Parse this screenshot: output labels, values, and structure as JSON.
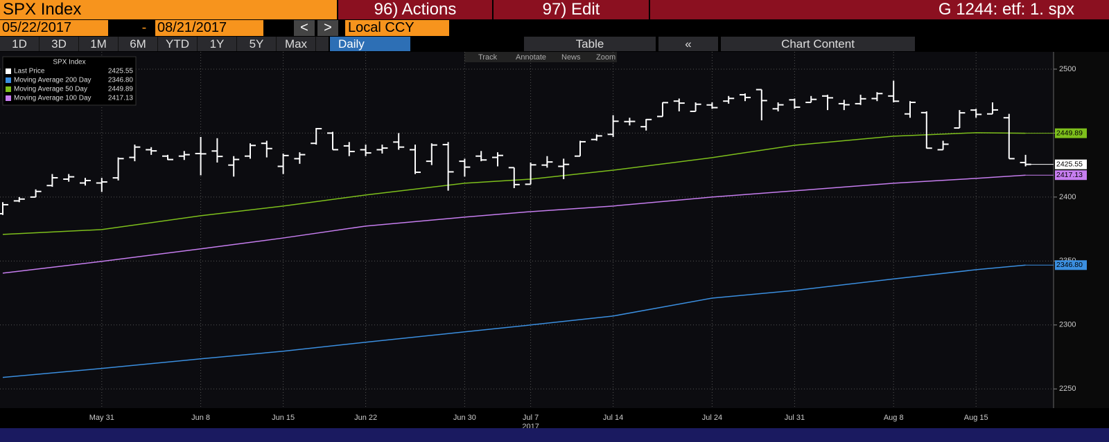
{
  "toolbar": {
    "security": "SPX Index",
    "actions": "96) Actions",
    "edit": "97) Edit",
    "ticker": "G 1244: etf: 1. spx"
  },
  "range": {
    "start": "05/22/2017",
    "separator": "-",
    "end": "08/21/2017",
    "prev": "<",
    "next": ">",
    "currency": "Local CCY"
  },
  "periods": [
    "1D",
    "3D",
    "1M",
    "6M",
    "YTD",
    "1Y",
    "5Y",
    "Max"
  ],
  "frequency": "Daily",
  "table": "Table",
  "collapse": "«",
  "chart_content": "Chart Content",
  "tools": [
    "Track",
    "Annotate",
    "News",
    "Zoom"
  ],
  "chart_data": {
    "type": "ohlc",
    "legend_title": "SPX Index",
    "price_name": "Last Price",
    "price_color": "#ffffff",
    "last_price": 2425.55,
    "last_price_label": "2425.55",
    "categories": [
      "May 22",
      "May 23",
      "May 24",
      "May 25",
      "May 26",
      "May 30",
      "May 31",
      "Jun 1",
      "Jun 2",
      "Jun 5",
      "Jun 6",
      "Jun 7",
      "Jun 8",
      "Jun 9",
      "Jun 12",
      "Jun 13",
      "Jun 14",
      "Jun 15",
      "Jun 16",
      "Jun 19",
      "Jun 20",
      "Jun 21",
      "Jun 22",
      "Jun 23",
      "Jun 26",
      "Jun 27",
      "Jun 28",
      "Jun 29",
      "Jun 30",
      "Jul 3",
      "Jul 5",
      "Jul 6",
      "Jul 7",
      "Jul 10",
      "Jul 11",
      "Jul 12",
      "Jul 13",
      "Jul 14",
      "Jul 17",
      "Jul 18",
      "Jul 19",
      "Jul 20",
      "Jul 21",
      "Jul 24",
      "Jul 25",
      "Jul 26",
      "Jul 27",
      "Jul 28",
      "Jul 31",
      "Aug 1",
      "Aug 2",
      "Aug 3",
      "Aug 4",
      "Aug 7",
      "Aug 8",
      "Aug 9",
      "Aug 10",
      "Aug 11",
      "Aug 14",
      "Aug 15",
      "Aug 16",
      "Aug 17",
      "Aug 18"
    ],
    "open": [
      2387,
      2397,
      2400,
      2409,
      2414,
      2411,
      2411,
      2415,
      2431,
      2437,
      2432,
      2432,
      2434,
      2436,
      2425,
      2432,
      2442,
      2424,
      2430,
      2442,
      2450,
      2440,
      2437,
      2437,
      2443,
      2437,
      2428,
      2441,
      2428,
      2432,
      2431,
      2423,
      2410,
      2425,
      2424,
      2432,
      2445,
      2449,
      2459,
      2455,
      2463,
      2475,
      2467,
      2472,
      2475,
      2480,
      2484,
      2469,
      2476,
      2474,
      2479,
      2473,
      2473,
      2477,
      2479,
      2465,
      2466,
      2437,
      2454,
      2468,
      2465,
      2462,
      2427
    ],
    "high": [
      2396,
      2400,
      2406,
      2418,
      2418,
      2415,
      2415,
      2431,
      2441,
      2439,
      2433,
      2436,
      2447,
      2446,
      2432,
      2442,
      2444,
      2434,
      2435,
      2454,
      2451,
      2443,
      2441,
      2441,
      2450,
      2441,
      2442,
      2443,
      2430,
      2436,
      2435,
      2423,
      2427,
      2432,
      2430,
      2444,
      2449,
      2464,
      2462,
      2461,
      2474,
      2477,
      2474,
      2474,
      2479,
      2481,
      2484,
      2474,
      2477,
      2479,
      2480,
      2476,
      2480,
      2482,
      2491,
      2475,
      2467,
      2444,
      2468,
      2469,
      2474,
      2465,
      2433
    ],
    "low": [
      2386,
      2396,
      2400,
      2408,
      2412,
      2409,
      2404,
      2413,
      2428,
      2433,
      2429,
      2429,
      2417,
      2427,
      2416,
      2430,
      2431,
      2418,
      2426,
      2441,
      2437,
      2432,
      2432,
      2434,
      2437,
      2418,
      2425,
      2405,
      2416,
      2428,
      2424,
      2407,
      2410,
      2423,
      2414,
      2432,
      2444,
      2447,
      2456,
      2452,
      2463,
      2467,
      2467,
      2469,
      2473,
      2475,
      2460,
      2467,
      2469,
      2474,
      2468,
      2468,
      2472,
      2475,
      2474,
      2462,
      2438,
      2437,
      2454,
      2462,
      2465,
      2430,
      2424
    ],
    "close": [
      2394.02,
      2398.42,
      2404.39,
      2415.07,
      2415.82,
      2412.91,
      2411.8,
      2430.06,
      2439.07,
      2436.1,
      2429.33,
      2433.14,
      2433.79,
      2431.77,
      2429.39,
      2440.35,
      2437.92,
      2432.46,
      2433.15,
      2453.46,
      2437.03,
      2435.61,
      2434.5,
      2438.3,
      2439.07,
      2419.38,
      2440.69,
      2419.7,
      2423.41,
      2429.01,
      2432.54,
      2409.75,
      2425.18,
      2427.43,
      2425.53,
      2443.25,
      2447.83,
      2459.27,
      2459.14,
      2460.61,
      2473.83,
      2473.45,
      2472.54,
      2469.91,
      2477.13,
      2477.83,
      2475.42,
      2472.1,
      2470.3,
      2476.35,
      2477.57,
      2472.16,
      2476.83,
      2480.91,
      2474.92,
      2474.02,
      2438.21,
      2441.32,
      2465.84,
      2464.61,
      2468.11,
      2430.01,
      2425.55
    ],
    "series": [
      {
        "name": "Moving Average 200 Day",
        "color": "#3b8fe0",
        "last": 2346.8,
        "last_label": "2346.80",
        "x": [
          "May 22",
          "May 31",
          "Jun 8",
          "Jun 15",
          "Jun 22",
          "Jun 30",
          "Jul 7",
          "Jul 14",
          "Jul 24",
          "Jul 31",
          "Aug 8",
          "Aug 15",
          "Aug 18"
        ],
        "values": [
          2259,
          2266,
          2273.5,
          2279.5,
          2286.5,
          2294.6,
          2300,
          2307,
          2321,
          2327,
          2336,
          2343.2,
          2346.8
        ]
      },
      {
        "name": "Moving Average 50 Day",
        "color": "#7ec01c",
        "last": 2449.89,
        "last_label": "2449.89",
        "x": [
          "May 22",
          "May 31",
          "Jun 8",
          "Jun 15",
          "Jun 22",
          "Jun 30",
          "Jul 7",
          "Jul 14",
          "Jul 24",
          "Jul 31",
          "Aug 8",
          "Aug 15",
          "Aug 18"
        ],
        "values": [
          2370.8,
          2374.6,
          2385.4,
          2393,
          2401.6,
          2410.8,
          2414,
          2421,
          2430.8,
          2440.5,
          2447.6,
          2450.3,
          2449.89
        ]
      },
      {
        "name": "Moving Average 100 Day",
        "color": "#c77ef0",
        "last": 2417.13,
        "last_label": "2417.13",
        "x": [
          "May 22",
          "May 31",
          "Jun 8",
          "Jun 15",
          "Jun 22",
          "Jun 30",
          "Jul 7",
          "Jul 14",
          "Jul 24",
          "Jul 31",
          "Aug 8",
          "Aug 15",
          "Aug 18"
        ],
        "values": [
          2340.5,
          2349.7,
          2359.5,
          2368,
          2377.3,
          2384.3,
          2388.6,
          2393,
          2400,
          2404.9,
          2410.8,
          2414.6,
          2417.13
        ]
      }
    ],
    "ylim": [
      2235,
      2513.5
    ],
    "yticks": [
      2250,
      2300,
      2350,
      2400,
      2450,
      2500
    ],
    "xticks": [
      "May 31",
      "Jun 8",
      "Jun 15",
      "Jun 22",
      "Jun 30",
      "Jul 7",
      "Jul 14",
      "Jul 24",
      "Jul 31",
      "Aug 8",
      "Aug 15"
    ],
    "year_label": "2017",
    "year_at": "Jul 7",
    "grid": true
  }
}
